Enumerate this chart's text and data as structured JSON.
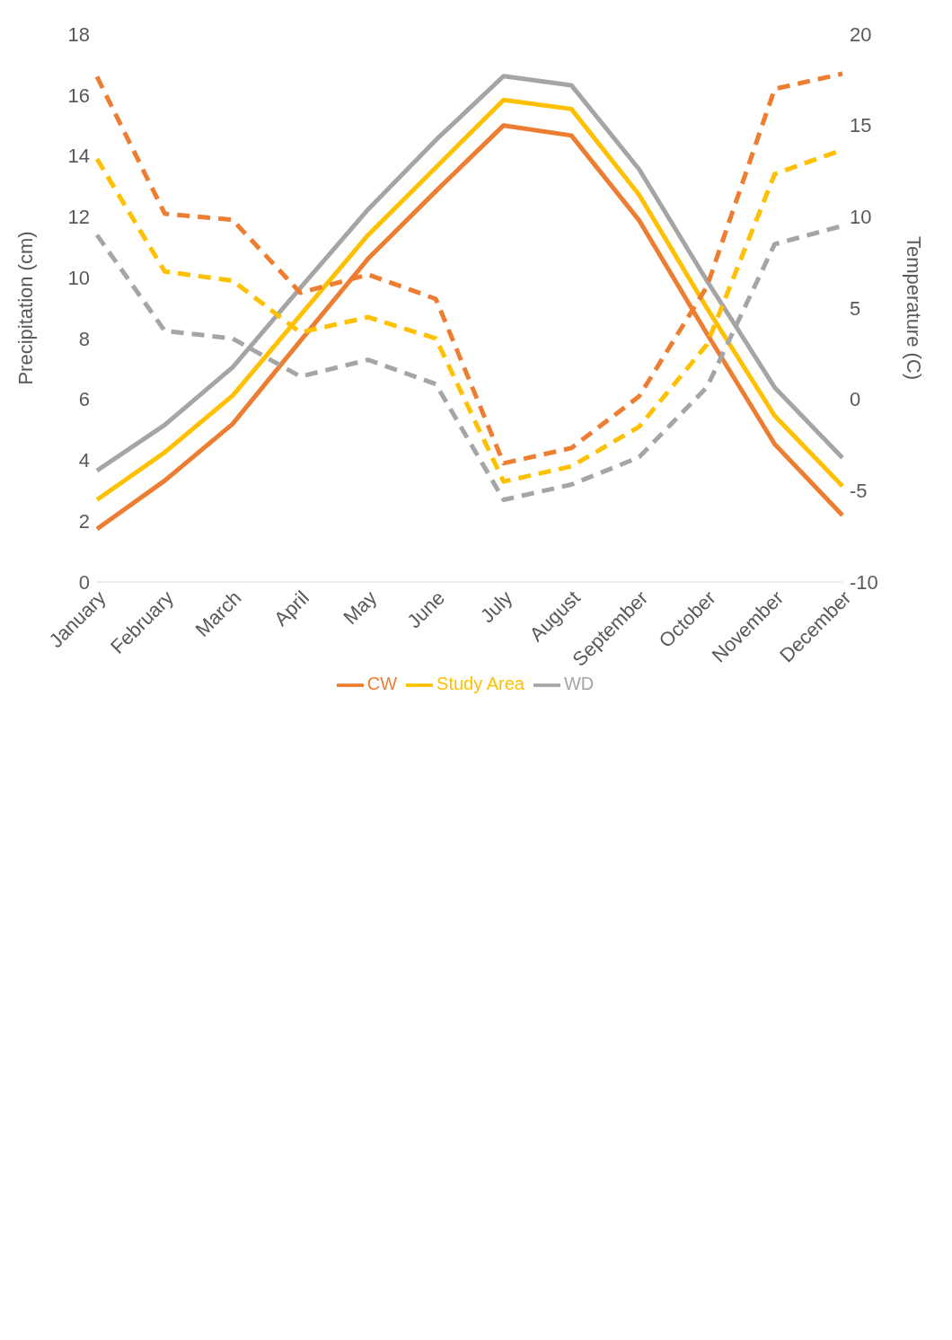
{
  "chart_data": {
    "type": "line",
    "categories": [
      "January",
      "February",
      "March",
      "April",
      "May",
      "June",
      "July",
      "August",
      "September",
      "October",
      "November",
      "December"
    ],
    "xlabel": null,
    "ylabel": "Precipitation (cm)",
    "y2label": "Temperature (C)",
    "ylim": [
      0,
      18
    ],
    "yticks": [
      0,
      2,
      4,
      6,
      8,
      10,
      12,
      14,
      16,
      18
    ],
    "y2lim": [
      -10,
      20
    ],
    "y2ticks": [
      -10,
      -5,
      0,
      5,
      10,
      15,
      20
    ],
    "grid": false,
    "legend": "bottom",
    "marker": "none",
    "series": [
      {
        "name": "CW",
        "color": "#ed7d31",
        "axis": "y2",
        "line_style": "solid",
        "values": [
          -7.1,
          -4.45,
          -1.35,
          3.2,
          7.7,
          11.4,
          15.0,
          14.45,
          9.8,
          3.6,
          -2.45,
          -6.35
        ]
      },
      {
        "name": "WD",
        "color": "#a5a5a5",
        "axis": "y2",
        "line_style": "solid",
        "values": [
          -3.9,
          -1.4,
          1.75,
          6.1,
          10.4,
          14.2,
          17.7,
          17.2,
          12.6,
          6.5,
          0.65,
          -3.2
        ]
      },
      {
        "name": "Study Area",
        "color": "#ffc000",
        "axis": "y2",
        "line_style": "solid",
        "values": [
          -5.5,
          -2.9,
          0.2,
          4.6,
          9.0,
          12.7,
          16.4,
          15.9,
          11.2,
          5.0,
          -0.9,
          -4.75
        ]
      },
      {
        "color": "#ed7d31",
        "line_style": "dashed",
        "values": [
          16.6,
          12.1,
          11.9,
          9.5,
          10.1,
          9.3,
          3.9,
          4.4,
          6.1,
          9.7,
          16.2,
          16.7
        ]
      },
      {
        "color": "#ffc000",
        "line_style": "dashed",
        "values": [
          13.9,
          10.2,
          9.9,
          8.2,
          8.7,
          8.0,
          3.3,
          3.8,
          5.1,
          7.8,
          13.4,
          14.2
        ]
      },
      {
        "color": "#a5a5a5",
        "line_style": "dashed",
        "values": [
          11.4,
          8.25,
          8.0,
          6.75,
          7.3,
          6.5,
          2.7,
          3.2,
          4.1,
          6.4,
          11.1,
          11.7
        ]
      }
    ]
  }
}
